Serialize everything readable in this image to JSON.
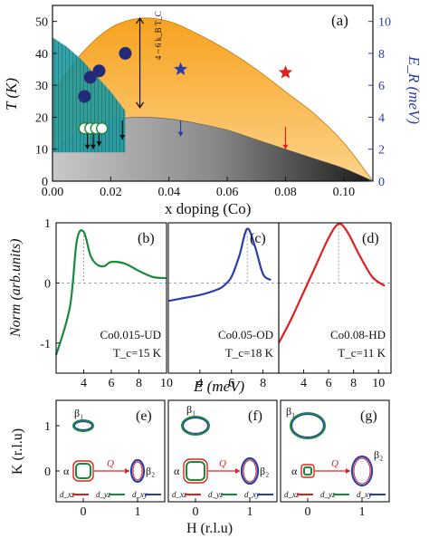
{
  "chart_data": [
    {
      "type": "area",
      "panel_label": "(a)",
      "xlabel": "x doping (Co)",
      "ylabel": "T (K)",
      "ylabel2": "E_R (meV)",
      "xlim": [
        0.0,
        0.11
      ],
      "ylim": [
        0,
        55
      ],
      "ylim2": [
        0,
        11
      ],
      "x_ticks": [
        "0.00",
        "0.02",
        "0.04",
        "0.06",
        "0.08",
        "0.10"
      ],
      "y_ticks": [
        "0",
        "10",
        "20",
        "30",
        "40",
        "50"
      ],
      "y2_ticks": [
        "0",
        "2",
        "4",
        "6",
        "8",
        "10"
      ],
      "annotation": "4 ~ 6 k_B T_C",
      "tc_dome": {
        "x": [
          0.0,
          0.01,
          0.02,
          0.03,
          0.04,
          0.05,
          0.06,
          0.07,
          0.08,
          0.09,
          0.1,
          0.11
        ],
        "y": [
          10,
          15,
          19,
          20,
          19.5,
          18,
          16,
          13,
          10,
          7,
          4,
          0
        ]
      },
      "upper_band": {
        "x": [
          0.0,
          0.01,
          0.02,
          0.03,
          0.04,
          0.05,
          0.06,
          0.07,
          0.08,
          0.09,
          0.1,
          0.11
        ],
        "y": [
          28,
          40,
          48,
          51,
          50,
          46,
          41,
          35,
          28,
          21,
          12,
          0
        ]
      },
      "sdw": {
        "x": [
          0.0,
          0.005,
          0.01,
          0.015,
          0.02,
          0.025
        ],
        "y": [
          45,
          42,
          38,
          33,
          28,
          22
        ]
      },
      "resonance_dots": {
        "x": [
          0.011,
          0.013,
          0.016,
          0.025
        ],
        "y": [
          26.5,
          32.5,
          34.5,
          40
        ]
      },
      "open_circles": {
        "x": [
          0.011,
          0.013,
          0.015,
          0.017
        ],
        "y": [
          16.5,
          16.5,
          16.5,
          16.5
        ]
      },
      "stars": {
        "x": [
          0.044,
          0.08
        ],
        "y": [
          35,
          34
        ],
        "colors": [
          "#2a3fa8",
          "#e02020"
        ]
      },
      "arrows": {
        "x": [
          0.012,
          0.014,
          0.016,
          0.024,
          0.044,
          0.08
        ],
        "y_from": [
          16,
          16,
          16,
          19,
          19,
          17
        ],
        "y_to": [
          10,
          10,
          11,
          13,
          14,
          10
        ],
        "colors": [
          "#111111",
          "#111111",
          "#111111",
          "#111111",
          "#2a3fa8",
          "#e02020"
        ]
      },
      "colors": {
        "dome": "#999999",
        "band": "#f5a623",
        "sdw": "#1a9a9a",
        "dots": "#232a7a"
      }
    },
    {
      "type": "line",
      "panels": [
        {
          "label": "(b)",
          "sample": "Co0.015-UD",
          "tc": "T_c=15 K",
          "color": "#1a8a3a",
          "x": [
            2,
            3,
            3.5,
            4,
            4.5,
            5,
            5.5,
            6,
            7,
            8,
            9,
            10
          ],
          "y": [
            -1.2,
            -0.4,
            0.7,
            0.85,
            0.45,
            0.3,
            0.28,
            0.35,
            0.32,
            0.2,
            0.1,
            0.08
          ],
          "xlim": [
            2,
            10
          ],
          "ylim": [
            -1.5,
            1.0
          ]
        },
        {
          "label": "(c)",
          "sample": "Co0.05-OD",
          "tc": "T_c=18 K",
          "color": "#2a3fa8",
          "x": [
            2,
            3,
            4,
            5,
            5.5,
            6,
            6.5,
            7,
            7.5,
            8,
            8.5
          ],
          "y": [
            -0.3,
            -0.25,
            -0.2,
            -0.12,
            -0.05,
            0.1,
            0.45,
            0.9,
            0.6,
            0.15,
            0.05
          ],
          "xlim": [
            2,
            9
          ],
          "ylim": [
            -1.5,
            1.0
          ]
        },
        {
          "label": "(d)",
          "sample": "Co0.08-HD",
          "tc": "T_c=11 K",
          "color": "#e02020",
          "x": [
            2,
            3,
            4,
            5,
            6,
            6.8,
            7.5,
            8.5,
            9.5,
            10.5
          ],
          "y": [
            -1.0,
            -0.6,
            -0.15,
            0.3,
            0.75,
            0.98,
            0.85,
            0.45,
            0.1,
            -0.05
          ],
          "xlim": [
            2,
            11
          ],
          "ylim": [
            -1.5,
            1.0
          ]
        }
      ],
      "ylabel": "Norm (arb.units)",
      "xlabel": "E (meV)",
      "y_ticks": [
        "-1",
        "0",
        "1"
      ],
      "x_ticks_b": [
        "4",
        "6",
        "8",
        "10"
      ],
      "x_ticks_c": [
        "4",
        "6",
        "8"
      ],
      "x_ticks_d": [
        "4",
        "6",
        "8",
        "10"
      ]
    },
    {
      "type": "scatter",
      "panels": [
        {
          "label": "(e)"
        },
        {
          "label": "(f)"
        },
        {
          "label": "(g)"
        }
      ],
      "xlabel": "H (r.l.u)",
      "ylabel": "K (r.l.u)",
      "x_ticks": [
        "0",
        "1"
      ],
      "y_ticks": [
        "0",
        "1"
      ],
      "text": {
        "beta1": "β₁",
        "beta2": "β₂",
        "alpha": "α",
        "q": "Q",
        "dxz": "d_xz",
        "dyz": "d_yz",
        "dxy": "d_xy"
      },
      "colors": {
        "dxz": "#e02020",
        "dyz": "#1a8a3a",
        "dxy": "#2a3fa8"
      }
    }
  ]
}
